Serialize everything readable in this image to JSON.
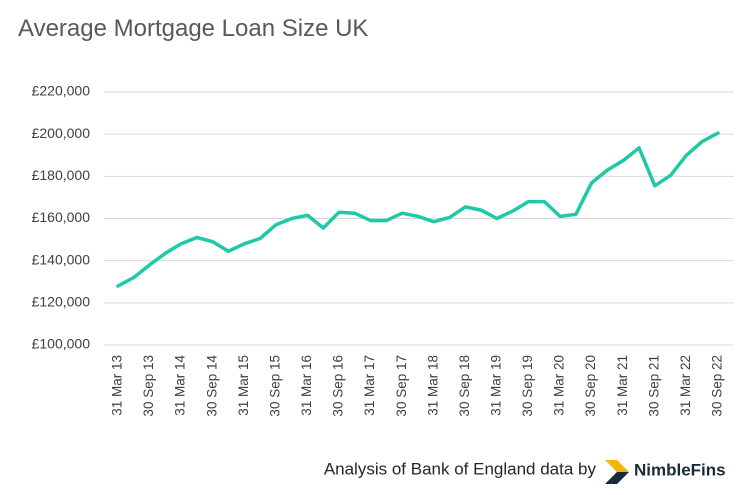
{
  "chart_data": {
    "type": "line",
    "title": "Average Mortgage Loan Size UK",
    "categories": [
      "31 Mar 13",
      null,
      "30 Sep 13",
      null,
      "31 Mar 14",
      null,
      "30 Sep 14",
      null,
      "31 Mar 15",
      null,
      "30 Sep 15",
      null,
      "31 Mar 16",
      null,
      "30 Sep 16",
      null,
      "31 Mar 17",
      null,
      "30 Sep 17",
      null,
      "31 Mar 18",
      null,
      "30 Sep 18",
      null,
      "31 Mar 19",
      null,
      "30 Sep 19",
      null,
      "31 Mar 20",
      null,
      "30 Sep 20",
      null,
      "31 Mar 21",
      null,
      "30 Sep 21",
      null,
      "31 Mar 22",
      null,
      "30 Sep 22"
    ],
    "values": [
      128000,
      132000,
      138000,
      143500,
      148000,
      151000,
      149000,
      144500,
      148000,
      150500,
      157000,
      160000,
      161500,
      155500,
      163000,
      162500,
      159000,
      159000,
      162500,
      161000,
      158500,
      160500,
      165500,
      164000,
      160000,
      163500,
      168000,
      168000,
      161000,
      162000,
      177000,
      183000,
      187500,
      193500,
      175500,
      180500,
      190000,
      196500,
      200500
    ],
    "color": "#1ec9a5",
    "ylim": [
      100000,
      220000
    ],
    "yticks": [
      {
        "value": 100000,
        "label": "£100,000"
      },
      {
        "value": 120000,
        "label": "£120,000"
      },
      {
        "value": 140000,
        "label": "£140,000"
      },
      {
        "value": 160000,
        "label": "£160,000"
      },
      {
        "value": 180000,
        "label": "£180,000"
      },
      {
        "value": 200000,
        "label": "£200,000"
      },
      {
        "value": 220000,
        "label": "£220,000"
      }
    ],
    "grid": true,
    "source": "Analysis of Bank of England data by",
    "brand": "NimbleFins"
  }
}
